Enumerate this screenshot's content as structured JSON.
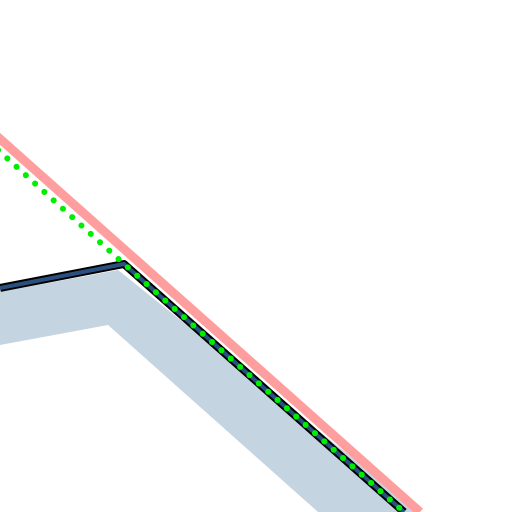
{
  "map": {
    "background_color": "#ffffff",
    "layers": [
      {
        "name": "casing-shadow",
        "color": "#c5d4e1"
      },
      {
        "name": "highlight-route",
        "color": "#ff9e9e"
      },
      {
        "name": "road-casing",
        "color": "#000000"
      },
      {
        "name": "road-fill",
        "color": "#2a5080"
      },
      {
        "name": "dotted-route",
        "color": "#00ee00"
      }
    ]
  }
}
